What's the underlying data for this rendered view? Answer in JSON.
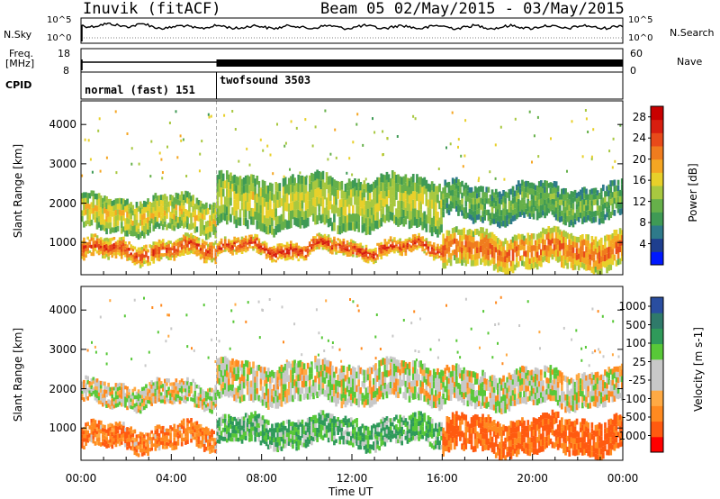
{
  "header": {
    "station": "Inuvik (fitACF)",
    "beam_date": "Beam 05 02/May/2015 - 03/May/2015"
  },
  "panels": {
    "nsky": {
      "left_label": "N.Sky",
      "right_label": "N.Search",
      "left_ticks": [
        "10^5",
        "10^0"
      ],
      "right_ticks": [
        "10^5",
        "10^0"
      ]
    },
    "freq": {
      "left_label_1": "Freq.",
      "left_label_2": "[MHz]",
      "right_label": "Nave",
      "left_ticks": [
        "18",
        "8"
      ],
      "right_ticks": [
        "60",
        "0"
      ]
    },
    "cpid": {
      "label": "CPID",
      "modes": [
        {
          "name": "normal (fast) 151"
        },
        {
          "name": "twofsound 3503"
        }
      ]
    }
  },
  "colors": {
    "power": [
      "#0018ff",
      "#1f3f8f",
      "#2e7a8a",
      "#3f9a55",
      "#66b04a",
      "#a8c840",
      "#e8d02a",
      "#f5a623",
      "#f07c1e",
      "#e84a1a",
      "#d81e10",
      "#c80000"
    ],
    "velocity_scale": [
      "#ff0000",
      "#ff5a10",
      "#ff8a20",
      "#ffaa44",
      "#c8c8c8",
      "#c8c8c8",
      "#58c838",
      "#2f9a5a",
      "#2f7a6a",
      "#2a4ea0",
      "#1f3aa8"
    ]
  },
  "chart_data": [
    {
      "type": "heatmap",
      "title": "Power",
      "xlabel": "Time UT",
      "ylabel": "Slant Range [km]",
      "x_ticks": [
        "00:00",
        "04:00",
        "08:00",
        "12:00",
        "16:00",
        "20:00",
        "00:00"
      ],
      "x_range_hours": [
        0,
        24
      ],
      "y_ticks": [
        1000,
        2000,
        3000,
        4000
      ],
      "ylim": [
        180,
        4600
      ],
      "colorbar": {
        "label": "Power [dB]",
        "ticks": [
          4,
          8,
          12,
          16,
          20,
          24,
          28
        ],
        "range": [
          0,
          30
        ]
      },
      "bands": [
        {
          "hours": [
            0,
            6
          ],
          "range_km": [
            500,
            1100
          ],
          "value_db": 26
        },
        {
          "hours": [
            0,
            6
          ],
          "range_km": [
            1200,
            2200
          ],
          "value_db": 18
        },
        {
          "hours": [
            6,
            16
          ],
          "range_km": [
            600,
            1100
          ],
          "value_db": 27
        },
        {
          "hours": [
            6,
            16
          ],
          "range_km": [
            1300,
            2700
          ],
          "value_db": 16
        },
        {
          "hours": [
            16,
            24
          ],
          "range_km": [
            300,
            1300
          ],
          "value_db": 24
        },
        {
          "hours": [
            16,
            24
          ],
          "range_km": [
            1500,
            2500
          ],
          "value_db": 12
        }
      ]
    },
    {
      "type": "heatmap",
      "title": "Velocity",
      "xlabel": "Time UT",
      "ylabel": "Slant Range [km]",
      "x_ticks": [
        "00:00",
        "04:00",
        "08:00",
        "12:00",
        "16:00",
        "20:00",
        "00:00"
      ],
      "x_range_hours": [
        0,
        24
      ],
      "y_ticks": [
        1000,
        2000,
        3000,
        4000
      ],
      "ylim": [
        180,
        4600
      ],
      "colorbar": {
        "label": "Velocity [m s-1]",
        "ticks": [
          1000,
          500,
          100,
          25,
          -25,
          -100,
          -500,
          -1000
        ]
      },
      "bands": [
        {
          "hours": [
            0,
            6
          ],
          "range_km": [
            400,
            1100
          ],
          "velocity": -200
        },
        {
          "hours": [
            0,
            6
          ],
          "range_km": [
            1500,
            2200
          ],
          "velocity": 0
        },
        {
          "hours": [
            6,
            16
          ],
          "range_km": [
            500,
            1300
          ],
          "velocity": 150
        },
        {
          "hours": [
            6,
            16
          ],
          "range_km": [
            1600,
            2700
          ],
          "velocity": 0
        },
        {
          "hours": [
            16,
            24
          ],
          "range_km": [
            300,
            1300
          ],
          "velocity": -300
        },
        {
          "hours": [
            16,
            24
          ],
          "range_km": [
            1500,
            2500
          ],
          "velocity": 0
        }
      ]
    }
  ]
}
